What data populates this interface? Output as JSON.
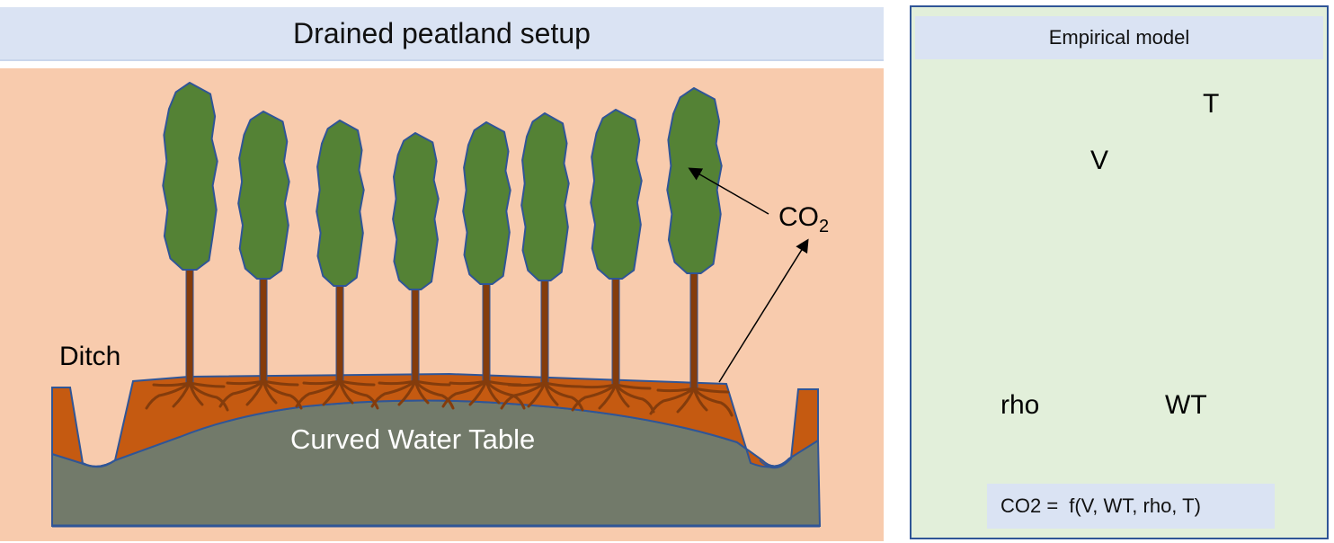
{
  "left_panel": {
    "title": "Drained peatland setup",
    "labels": {
      "ditch": "Ditch",
      "water_table": "Curved Water Table",
      "co2": "CO",
      "co2_subscript": "2"
    }
  },
  "right_panel": {
    "title": "Empirical model",
    "labels": {
      "v": "V",
      "t": "T",
      "rho": "rho",
      "wt": "WT"
    },
    "formula": {
      "lhs": "CO2 =",
      "rhs": "f(V, WT, rho, T)"
    }
  },
  "colors": {
    "background_left": "#f8cbad",
    "peat": "#c55a11",
    "groundwater": "#727a6a",
    "water": "#9dc3e6",
    "outline": "#2f5597",
    "tree_crown": "#548235",
    "trunk": "#843c0c",
    "panel_right": "#e2efda",
    "header": "#dae3f3"
  },
  "trees_left_count": 8
}
